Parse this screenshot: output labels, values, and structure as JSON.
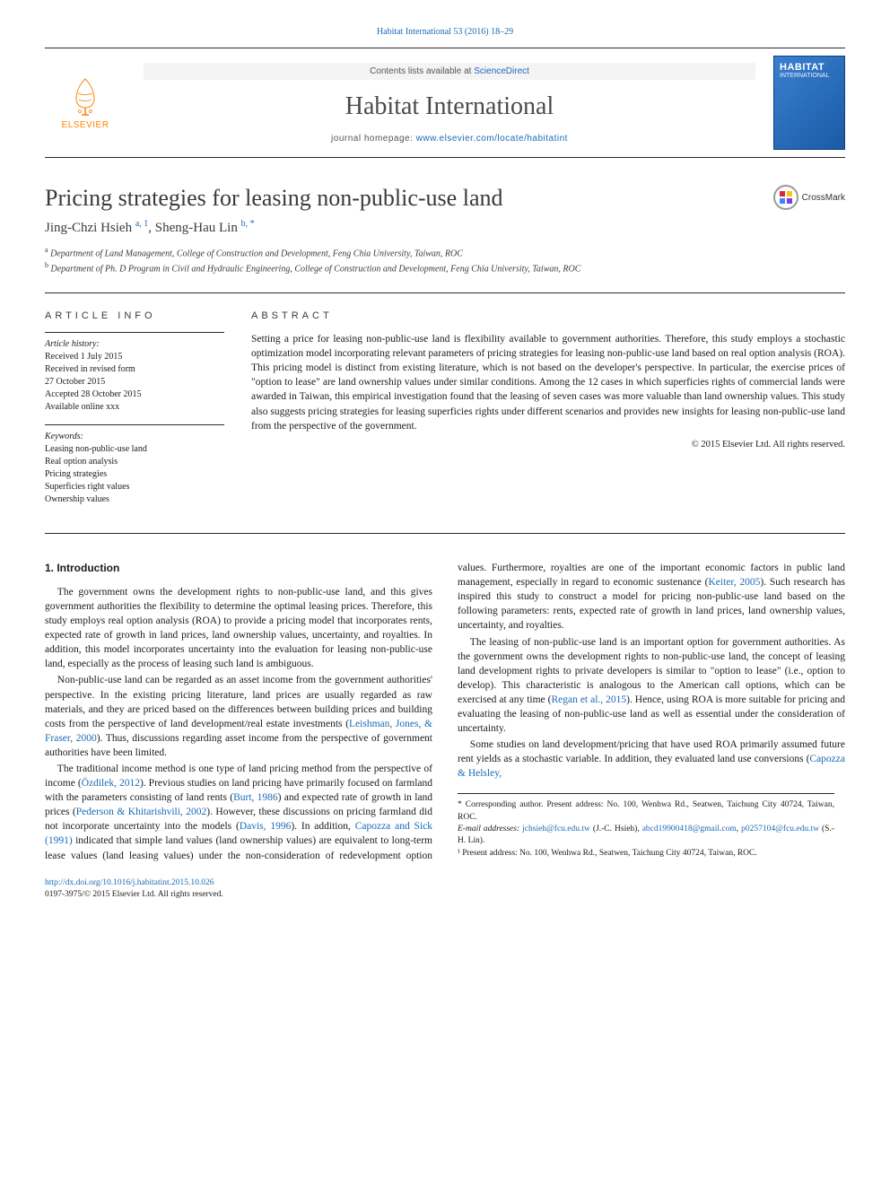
{
  "citation": {
    "text": "Habitat International 53 (2016) 18–29"
  },
  "header": {
    "publisher": "ELSEVIER",
    "publisher_color": "#ff8200",
    "contents_prefix": "Contents lists available at ",
    "contents_link": "ScienceDirect",
    "journal_name": "Habitat International",
    "homepage_prefix": "journal homepage: ",
    "homepage_url": "www.elsevier.com/locate/habitatint",
    "cover_title": "HABITAT",
    "cover_subtitle": "INTERNATIONAL",
    "border_color": "#2a2a2a",
    "background_color": "#ffffff",
    "link_color": "#1a6bb5"
  },
  "article": {
    "title": "Pricing strategies for leasing non-public-use land",
    "crossmark_label": "CrossMark",
    "authors_html": "Jing-Chzi Hsieh <sup>a, 1</sup>, Sheng-Hau Lin <sup>b, *</sup>",
    "affiliations": [
      {
        "sup": "a",
        "text": "Department of Land Management, College of Construction and Development, Feng Chia University, Taiwan, ROC"
      },
      {
        "sup": "b",
        "text": "Department of Ph. D Program in Civil and Hydraulic Engineering, College of Construction and Development, Feng Chia University, Taiwan, ROC"
      }
    ]
  },
  "info": {
    "heading": "ARTICLE INFO",
    "history_label": "Article history:",
    "history": [
      "Received 1 July 2015",
      "Received in revised form",
      "27 October 2015",
      "Accepted 28 October 2015",
      "Available online xxx"
    ],
    "keywords_label": "Keywords:",
    "keywords": [
      "Leasing non-public-use land",
      "Real option analysis",
      "Pricing strategies",
      "Superficies right values",
      "Ownership values"
    ]
  },
  "abstract": {
    "heading": "ABSTRACT",
    "text": "Setting a price for leasing non-public-use land is flexibility available to government authorities. Therefore, this study employs a stochastic optimization model incorporating relevant parameters of pricing strategies for leasing non-public-use land based on real option analysis (ROA). This pricing model is distinct from existing literature, which is not based on the developer's perspective. In particular, the exercise prices of \"option to lease\" are land ownership values under similar conditions. Among the 12 cases in which superficies rights of commercial lands were awarded in Taiwan, this empirical investigation found that the leasing of seven cases was more valuable than land ownership values. This study also suggests pricing strategies for leasing superficies rights under different scenarios and provides new insights for leasing non-public-use land from the perspective of the government.",
    "copyright": "© 2015 Elsevier Ltd. All rights reserved."
  },
  "body": {
    "section_heading": "1. Introduction",
    "paragraphs": [
      "The government owns the development rights to non-public-use land, and this gives government authorities the flexibility to determine the optimal leasing prices. Therefore, this study employs real option analysis (ROA) to provide a pricing model that incorporates rents, expected rate of growth in land prices, land ownership values, uncertainty, and royalties. In addition, this model incorporates uncertainty into the evaluation for leasing non-public-use land, especially as the process of leasing such land is ambiguous.",
      "Non-public-use land can be regarded as an asset income from the government authorities' perspective. In the existing pricing literature, land prices are usually regarded as raw materials, and they are priced based on the differences between building prices and building costs from the perspective of land development/real estate investments (<span class=\"cite\">Leishman, Jones, & Fraser, 2000</span>). Thus, discussions regarding asset income from the perspective of government authorities have been limited.",
      "The traditional income method is one type of land pricing method from the perspective of income (<span class=\"cite\">Özdilek, 2012</span>). Previous studies on land pricing have primarily focused on farmland with the parameters consisting of land rents (<span class=\"cite\">Burt, 1986</span>) and expected rate of growth in land prices (<span class=\"cite\">Pederson & Khitarishvili, 2002</span>). However, these discussions on pricing farmland did not incorporate uncertainty into the models (<span class=\"cite\">Davis, 1996</span>). In addition, <span class=\"cite\">Capozza and Sick (1991)</span> indicated that simple land values (land ownership values) are equivalent to long-term lease values (land leasing values) under the non-consideration of redevelopment option values. Furthermore, royalties are one of the important economic factors in public land management, especially in regard to economic sustenance (<span class=\"cite\">Keiter, 2005</span>). Such research has inspired this study to construct a model for pricing non-public-use land based on the following parameters: rents, expected rate of growth in land prices, land ownership values, uncertainty, and royalties.",
      "The leasing of non-public-use land is an important option for government authorities. As the government owns the development rights to non-public-use land, the concept of leasing land development rights to private developers is similar to \"option to lease\" (i.e., option to develop). This characteristic is analogous to the American call options, which can be exercised at any time (<span class=\"cite\">Regan et al., 2015</span>). Hence, using ROA is more suitable for pricing and evaluating the leasing of non-public-use land as well as essential under the consideration of uncertainty.",
      "Some studies on land development/pricing that have used ROA primarily assumed future rent yields as a stochastic variable. In addition, they evaluated land use conversions (<span class=\"cite\">Capozza & Helsley,</span>"
    ]
  },
  "footnotes": {
    "corresponding": "* Corresponding author. Present address: No. 100, Wenhwa Rd., Seatwen, Taichung City 40724, Taiwan, ROC.",
    "email_label": "E-mail addresses: ",
    "emails": [
      {
        "addr": "jchsieh@fcu.edu.tw",
        "who": "(J.-C. Hsieh)"
      },
      {
        "addr": "abcd19900418@gmail.com",
        "who": ""
      },
      {
        "addr": "p0257104@fcu.edu.tw",
        "who": "(S.-H. Lin)"
      }
    ],
    "present_address": "¹ Present address: No. 100, Wenhwa Rd., Seatwen, Taichung City 40724, Taiwan, ROC."
  },
  "bottom": {
    "doi": "http://dx.doi.org/10.1016/j.habitatint.2015.10.026",
    "issn_line": "0197-3975/© 2015 Elsevier Ltd. All rights reserved."
  },
  "typography": {
    "title_fontsize": 26,
    "body_fontsize": 11.5,
    "abstract_fontsize": 11.5,
    "info_fontsize": 10,
    "citation_fontsize": 10,
    "text_color": "#1a1a1a",
    "heading_color": "#3a3a3a"
  }
}
